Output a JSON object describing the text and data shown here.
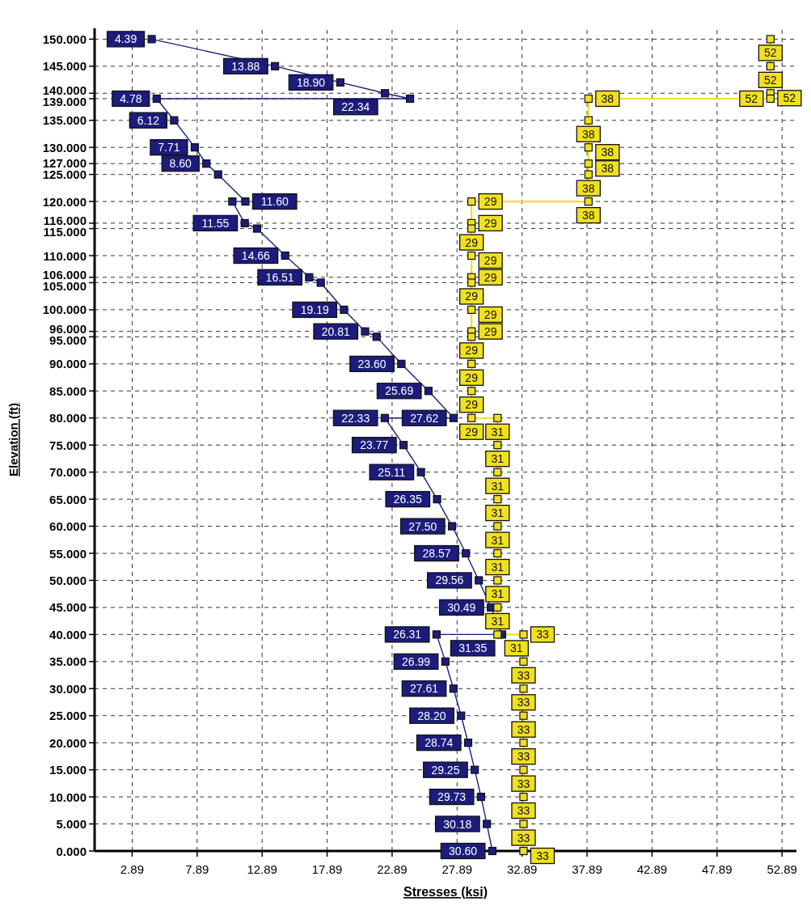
{
  "chart_data": {
    "type": "line",
    "xlabel": "Stresses (ksi)",
    "ylabel": "Elevation (ft)",
    "xlim": [
      0,
      54
    ],
    "ylim": [
      0,
      152
    ],
    "xticks": [
      2.89,
      7.89,
      12.89,
      17.89,
      22.89,
      27.89,
      32.89,
      37.89,
      42.89,
      47.89,
      52.89
    ],
    "yticks": [
      {
        "value": 0,
        "label": "0.000"
      },
      {
        "value": 5,
        "label": "5.000"
      },
      {
        "value": 10,
        "label": "10.000"
      },
      {
        "value": 15,
        "label": "15.000"
      },
      {
        "value": 20,
        "label": "20.000"
      },
      {
        "value": 25,
        "label": "25.000"
      },
      {
        "value": 30,
        "label": "30.000"
      },
      {
        "value": 35,
        "label": "35.000"
      },
      {
        "value": 40,
        "label": "40.000"
      },
      {
        "value": 45,
        "label": "45.000"
      },
      {
        "value": 50,
        "label": "50.000"
      },
      {
        "value": 55,
        "label": "55.000"
      },
      {
        "value": 60,
        "label": "60.000"
      },
      {
        "value": 65,
        "label": "65.000"
      },
      {
        "value": 70,
        "label": "70.000"
      },
      {
        "value": 75,
        "label": "75.000"
      },
      {
        "value": 80,
        "label": "80.000"
      },
      {
        "value": 85,
        "label": "85.000"
      },
      {
        "value": 90,
        "label": "90.000"
      },
      {
        "value": 95,
        "label": "95.000"
      },
      {
        "value": 96,
        "label": "96.000"
      },
      {
        "value": 100,
        "label": "100.000"
      },
      {
        "value": 105,
        "label": "105.000"
      },
      {
        "value": 106,
        "label": "106.000"
      },
      {
        "value": 110,
        "label": "110.000"
      },
      {
        "value": 115,
        "label": "115.000"
      },
      {
        "value": 116,
        "label": "116.000"
      },
      {
        "value": 120,
        "label": "120.000"
      },
      {
        "value": 125,
        "label": "125.000"
      },
      {
        "value": 127,
        "label": "127.000"
      },
      {
        "value": 130,
        "label": "130.000"
      },
      {
        "value": 135,
        "label": "135.000"
      },
      {
        "value": 139,
        "label": "139.000"
      },
      {
        "value": 140,
        "label": "140.000"
      },
      {
        "value": 145,
        "label": "145.000"
      },
      {
        "value": 150,
        "label": "150.000"
      }
    ],
    "grid": true,
    "marker": "square",
    "line_style": "solid",
    "series": [
      {
        "color": "#1c1c7c",
        "x": [
          4.39,
          13.88,
          18.9,
          22.34,
          24.27,
          4.78,
          6.12,
          7.71,
          8.6,
          9.5,
          11.6,
          10.6,
          11.55,
          12.5,
          14.66,
          16.51,
          17.4,
          19.19,
          20.81,
          21.7,
          23.6,
          25.69,
          27.62,
          22.33,
          23.77,
          25.11,
          26.35,
          27.5,
          28.57,
          29.56,
          30.49,
          31.35,
          26.31,
          26.99,
          27.61,
          28.2,
          28.74,
          29.25,
          29.73,
          30.18,
          30.6
        ],
        "values": [
          150,
          145,
          142,
          140,
          139,
          139,
          135,
          130,
          127,
          125,
          120,
          120,
          116,
          115,
          110,
          106,
          105,
          100,
          96,
          95,
          90,
          85,
          80,
          80,
          75,
          70,
          65,
          60,
          55,
          50,
          45,
          40,
          40,
          35,
          30,
          25,
          20,
          15,
          10,
          5,
          0
        ]
      },
      {
        "color": "#f0e020",
        "x": [
          52,
          52,
          52,
          52,
          38,
          38,
          38,
          38,
          38,
          38,
          29,
          29,
          29,
          29,
          29,
          29,
          29,
          29,
          29,
          29,
          29,
          29,
          31,
          31,
          31,
          31,
          31,
          31,
          31,
          31,
          31,
          33,
          33,
          33,
          33,
          33,
          33,
          33,
          33,
          33
        ],
        "values": [
          150,
          145,
          140,
          139,
          139,
          135,
          130,
          127,
          125,
          120,
          120,
          116,
          115,
          110,
          106,
          105,
          100,
          96,
          95,
          90,
          85,
          80,
          80,
          75,
          70,
          65,
          60,
          55,
          50,
          45,
          40,
          40,
          35,
          30,
          25,
          20,
          15,
          10,
          5,
          0
        ]
      }
    ],
    "annotations": [
      {
        "text": "4.39",
        "x": 4.39,
        "y": 150
      },
      {
        "text": "13.88",
        "x": 13.88,
        "y": 145
      },
      {
        "text": "18.90",
        "x": 18.9,
        "y": 142
      },
      {
        "text": "22.34",
        "x": 22.34,
        "y": 140
      },
      {
        "text": "4.78",
        "x": 4.78,
        "y": 139
      },
      {
        "text": "6.12",
        "x": 6.12,
        "y": 135
      },
      {
        "text": "7.71",
        "x": 7.71,
        "y": 130
      },
      {
        "text": "8.60",
        "x": 8.6,
        "y": 127
      },
      {
        "text": "11.60",
        "x": 11.6,
        "y": 120
      },
      {
        "text": "11.55",
        "x": 11.55,
        "y": 116
      },
      {
        "text": "14.66",
        "x": 14.66,
        "y": 110
      },
      {
        "text": "16.51",
        "x": 16.51,
        "y": 106
      },
      {
        "text": "19.19",
        "x": 19.19,
        "y": 100
      },
      {
        "text": "20.81",
        "x": 20.81,
        "y": 96
      },
      {
        "text": "23.60",
        "x": 23.6,
        "y": 90
      },
      {
        "text": "25.69",
        "x": 25.69,
        "y": 85
      },
      {
        "text": "27.62",
        "x": 27.62,
        "y": 80
      },
      {
        "text": "22.33",
        "x": 22.33,
        "y": 80
      },
      {
        "text": "23.77",
        "x": 23.77,
        "y": 75
      },
      {
        "text": "25.11",
        "x": 25.11,
        "y": 70
      },
      {
        "text": "26.35",
        "x": 26.35,
        "y": 65
      },
      {
        "text": "27.50",
        "x": 27.5,
        "y": 60
      },
      {
        "text": "28.57",
        "x": 28.57,
        "y": 55
      },
      {
        "text": "29.56",
        "x": 29.56,
        "y": 50
      },
      {
        "text": "30.49",
        "x": 30.49,
        "y": 45
      },
      {
        "text": "31.35",
        "x": 31.35,
        "y": 40
      },
      {
        "text": "26.31",
        "x": 26.31,
        "y": 40
      },
      {
        "text": "26.99",
        "x": 26.99,
        "y": 35
      },
      {
        "text": "27.61",
        "x": 27.61,
        "y": 30
      },
      {
        "text": "28.20",
        "x": 28.2,
        "y": 25
      },
      {
        "text": "28.74",
        "x": 28.74,
        "y": 20
      },
      {
        "text": "29.25",
        "x": 29.25,
        "y": 15
      },
      {
        "text": "29.73",
        "x": 29.73,
        "y": 10
      },
      {
        "text": "30.18",
        "x": 30.18,
        "y": 5
      },
      {
        "text": "30.60",
        "x": 30.6,
        "y": 0
      },
      {
        "text": "52",
        "x": 52,
        "y": 150
      },
      {
        "text": "52",
        "x": 52,
        "y": 145
      },
      {
        "text": "52",
        "x": 52,
        "y": 140
      },
      {
        "text": "52",
        "x": 52,
        "y": 139
      },
      {
        "text": "38",
        "x": 38,
        "y": 139
      },
      {
        "text": "38",
        "x": 38,
        "y": 135
      },
      {
        "text": "38",
        "x": 38,
        "y": 130
      },
      {
        "text": "38",
        "x": 38,
        "y": 127
      },
      {
        "text": "38",
        "x": 38,
        "y": 125
      },
      {
        "text": "38",
        "x": 38,
        "y": 120
      },
      {
        "text": "29",
        "x": 29,
        "y": 120
      },
      {
        "text": "29",
        "x": 29,
        "y": 116
      },
      {
        "text": "29",
        "x": 29,
        "y": 115
      },
      {
        "text": "29",
        "x": 29,
        "y": 110
      },
      {
        "text": "29",
        "x": 29,
        "y": 106
      },
      {
        "text": "29",
        "x": 29,
        "y": 105
      },
      {
        "text": "29",
        "x": 29,
        "y": 100
      },
      {
        "text": "29",
        "x": 29,
        "y": 96
      },
      {
        "text": "29",
        "x": 29,
        "y": 95
      },
      {
        "text": "29",
        "x": 29,
        "y": 90
      },
      {
        "text": "29",
        "x": 29,
        "y": 85
      },
      {
        "text": "29",
        "x": 29,
        "y": 80
      },
      {
        "text": "31",
        "x": 31,
        "y": 80
      },
      {
        "text": "31",
        "x": 31,
        "y": 75
      },
      {
        "text": "31",
        "x": 31,
        "y": 70
      },
      {
        "text": "31",
        "x": 31,
        "y": 65
      },
      {
        "text": "31",
        "x": 31,
        "y": 60
      },
      {
        "text": "31",
        "x": 31,
        "y": 55
      },
      {
        "text": "31",
        "x": 31,
        "y": 50
      },
      {
        "text": "31",
        "x": 31,
        "y": 45
      },
      {
        "text": "31",
        "x": 31,
        "y": 40
      },
      {
        "text": "33",
        "x": 33,
        "y": 40
      },
      {
        "text": "33",
        "x": 33,
        "y": 35
      },
      {
        "text": "33",
        "x": 33,
        "y": 30
      },
      {
        "text": "33",
        "x": 33,
        "y": 25
      },
      {
        "text": "33",
        "x": 33,
        "y": 20
      },
      {
        "text": "33",
        "x": 33,
        "y": 15
      },
      {
        "text": "33",
        "x": 33,
        "y": 10
      },
      {
        "text": "33",
        "x": 33,
        "y": 5
      },
      {
        "text": "33",
        "x": 33,
        "y": 0
      }
    ]
  }
}
